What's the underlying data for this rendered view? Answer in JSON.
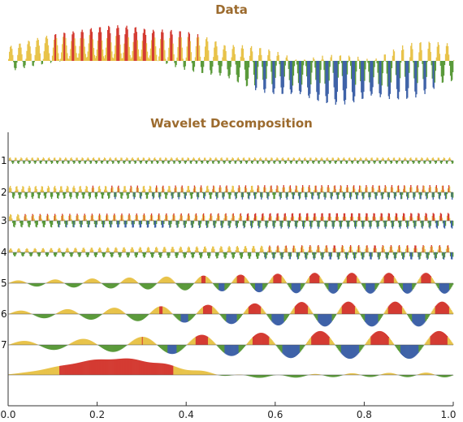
{
  "chart_data": [
    {
      "type": "area",
      "title": "Data",
      "description_series": "signal",
      "x_range": [
        0.0,
        1.0
      ],
      "components": [
        {
          "kind": "slow_sine",
          "amplitude": 0.4,
          "cycles": 1.5
        },
        {
          "kind": "carrier",
          "amplitude": 0.45,
          "cycles": 50
        },
        {
          "kind": "modulated",
          "amplitude": 0.55,
          "cycles": 12
        }
      ]
    },
    {
      "type": "area",
      "title": "Wavelet Decomposition",
      "x_range": [
        0.0,
        1.0
      ],
      "x_ticks": [
        0.0,
        0.2,
        0.4,
        0.6,
        0.8,
        1.0
      ],
      "x_tick_labels": [
        "0.0",
        "0.2",
        "0.4",
        "0.6",
        "0.8",
        "1.0"
      ],
      "levels": [
        {
          "label": "1",
          "amplitude": 0.45,
          "cycles": 80,
          "envelope": 0.0
        },
        {
          "label": "2",
          "amplitude": 0.6,
          "cycles": 70,
          "envelope": 0.15
        },
        {
          "label": "3",
          "amplitude": 0.65,
          "cycles": 60,
          "envelope": 0.2
        },
        {
          "label": "4",
          "amplitude": 0.6,
          "cycles": 55,
          "envelope": 0.6
        },
        {
          "label": "5",
          "amplitude": 0.8,
          "cycles": 12,
          "envelope": 1.0
        },
        {
          "label": "6",
          "amplitude": 0.9,
          "cycles": 9.5,
          "envelope": 1.0
        },
        {
          "label": "7",
          "amplitude": 0.95,
          "cycles": 7.5,
          "envelope": 1.0
        },
        {
          "label": "",
          "amplitude": 1.0,
          "cycles": 1.5,
          "envelope": 1.0
        }
      ]
    }
  ],
  "colors": {
    "title": "#9c6b2e",
    "high": "#d43b32",
    "upper": "#e8c34a",
    "lower": "#5a9a3a",
    "low": "#3f62a8",
    "axis": "#333333"
  }
}
